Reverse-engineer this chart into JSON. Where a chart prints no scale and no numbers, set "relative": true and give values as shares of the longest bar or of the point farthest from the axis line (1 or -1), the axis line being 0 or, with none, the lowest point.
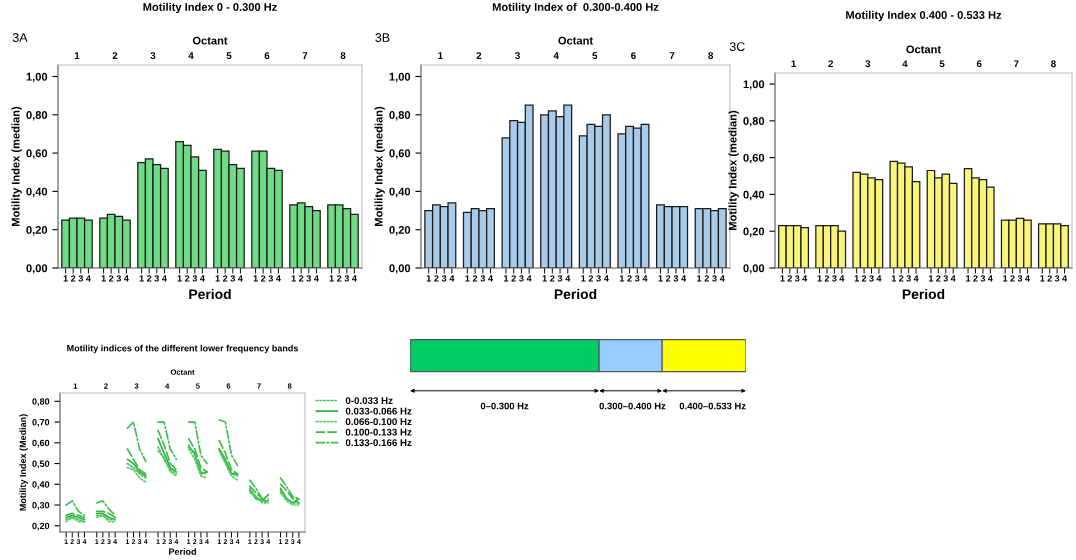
{
  "chart_data": [
    {
      "type": "bar",
      "title": "Motility Index 0 - 0.300 Hz",
      "annotations": [
        "3A"
      ],
      "xlabel": "Period",
      "x2label": "Octant",
      "ylabel": "Motility Index (median)",
      "categories": [
        "1",
        "2",
        "3",
        "4",
        null,
        "1",
        "2",
        "3",
        "4",
        null,
        "1",
        "2",
        "3",
        "4",
        null,
        "1",
        "2",
        "3",
        "4",
        null,
        "1",
        "2",
        "3",
        "4",
        null,
        "1",
        "2",
        "3",
        "4",
        null,
        "1",
        "2",
        "3",
        "4",
        null,
        "1",
        "2",
        "3",
        "4"
      ],
      "values": [
        0.25,
        0.26,
        0.26,
        0.25,
        null,
        0.26,
        0.28,
        0.27,
        0.25,
        null,
        0.55,
        0.57,
        0.54,
        0.52,
        null,
        0.66,
        0.64,
        0.58,
        0.51,
        null,
        0.62,
        0.61,
        0.54,
        0.52,
        null,
        0.61,
        0.61,
        0.52,
        0.51,
        null,
        0.33,
        0.34,
        0.32,
        0.3,
        null,
        0.33,
        0.33,
        0.31,
        0.28
      ],
      "color": "#6fdc85",
      "ylim": [
        0,
        1.06
      ],
      "yticks": [
        {
          "value": 0,
          "label": "0,00"
        },
        {
          "value": 0.2,
          "label": "0,20"
        },
        {
          "value": 0.4,
          "label": "0,40"
        },
        {
          "value": 0.6,
          "label": "0,60"
        },
        {
          "value": 0.8,
          "label": "0,80"
        },
        {
          "value": 1.0,
          "label": "1,00"
        }
      ],
      "x2lim": [
        0.5,
        8.5
      ],
      "x2ticks": [
        1,
        2,
        3,
        4,
        5,
        6,
        7,
        8
      ]
    },
    {
      "type": "bar",
      "title": "Motility Index of  0.300-0.400 Hz",
      "annotations": [
        "3B"
      ],
      "xlabel": "Period",
      "x2label": "Octant",
      "ylabel": "Motility Index (median)",
      "categories": [
        "1",
        "2",
        "3",
        "4",
        null,
        "1",
        "2",
        "3",
        "4",
        null,
        "1",
        "2",
        "3",
        "4",
        null,
        "1",
        "2",
        "3",
        "4",
        null,
        "1",
        "2",
        "3",
        "4",
        null,
        "1",
        "2",
        "3",
        "4",
        null,
        "1",
        "2",
        "3",
        "4",
        null,
        "1",
        "2",
        "3",
        "4"
      ],
      "values": [
        0.3,
        0.33,
        0.32,
        0.34,
        null,
        0.29,
        0.31,
        0.3,
        0.31,
        null,
        0.68,
        0.77,
        0.76,
        0.85,
        null,
        0.8,
        0.82,
        0.79,
        0.85,
        null,
        0.69,
        0.75,
        0.74,
        0.8,
        null,
        0.7,
        0.74,
        0.73,
        0.75,
        null,
        0.33,
        0.32,
        0.32,
        0.32,
        null,
        0.31,
        0.31,
        0.3,
        0.31
      ],
      "color": "#a9cbea",
      "ylim": [
        0,
        1.06
      ],
      "yticks": [
        {
          "value": 0,
          "label": "0,00"
        },
        {
          "value": 0.2,
          "label": "0,20"
        },
        {
          "value": 0.4,
          "label": "0,40"
        },
        {
          "value": 0.6,
          "label": "0,60"
        },
        {
          "value": 0.8,
          "label": "0,80"
        },
        {
          "value": 1.0,
          "label": "1,00"
        }
      ],
      "x2lim": [
        0.5,
        8.5
      ],
      "x2ticks": [
        1,
        2,
        3,
        4,
        5,
        6,
        7,
        8
      ]
    },
    {
      "type": "bar",
      "title": "Motility Index 0.400 - 0.533 Hz",
      "annotations": [
        "3C"
      ],
      "xlabel": "Period",
      "x2label": "Octant",
      "ylabel": "Motility Index (median)",
      "categories": [
        "1",
        "2",
        "3",
        "4",
        null,
        "1",
        "2",
        "3",
        "4",
        null,
        "1",
        "2",
        "3",
        "4",
        null,
        "1",
        "2",
        "3",
        "4",
        null,
        "1",
        "2",
        "3",
        "4",
        null,
        "1",
        "2",
        "3",
        "4",
        null,
        "1",
        "2",
        "3",
        "4",
        null,
        "1",
        "2",
        "3",
        "4"
      ],
      "values": [
        0.23,
        0.23,
        0.23,
        0.22,
        null,
        0.23,
        0.23,
        0.23,
        0.2,
        null,
        0.52,
        0.51,
        0.49,
        0.48,
        null,
        0.58,
        0.57,
        0.55,
        0.47,
        null,
        0.53,
        0.49,
        0.51,
        0.46,
        null,
        0.54,
        0.49,
        0.48,
        0.44,
        null,
        0.26,
        0.26,
        0.27,
        0.26,
        null,
        0.24,
        0.24,
        0.24,
        0.23
      ],
      "color": "#f9f57a",
      "ylim": [
        0,
        1.06
      ],
      "yticks": [
        {
          "value": 0,
          "label": "0,00"
        },
        {
          "value": 0.2,
          "label": "0,20"
        },
        {
          "value": 0.4,
          "label": "0,40"
        },
        {
          "value": 0.6,
          "label": "0,60"
        },
        {
          "value": 0.8,
          "label": "0,80"
        },
        {
          "value": 1.0,
          "label": "1,00"
        }
      ],
      "x2lim": [
        0.5,
        8.5
      ],
      "x2ticks": [
        1,
        2,
        3,
        4,
        5,
        6,
        7,
        8
      ]
    },
    {
      "type": "line",
      "title": "Motility indices of the different lower frequency bands",
      "xlabel": "Period",
      "x2label": "Octant",
      "ylabel": "Motility Index (Median)",
      "legend": "right",
      "categories": [
        "1",
        "2",
        "3",
        "4",
        null,
        "1",
        "2",
        "3",
        "4",
        null,
        "1",
        "2",
        "3",
        "4",
        null,
        "1",
        "2",
        "3",
        "4",
        null,
        "1",
        "2",
        "3",
        "4",
        null,
        "1",
        "2",
        "3",
        "4",
        null,
        "1",
        "2",
        "3",
        "4",
        null,
        "1",
        "2",
        "3",
        "4"
      ],
      "ylim": [
        0.17,
        0.84
      ],
      "yticks": [
        {
          "value": 0.2,
          "label": "0,20"
        },
        {
          "value": 0.3,
          "label": "0,30"
        },
        {
          "value": 0.4,
          "label": "0,40"
        },
        {
          "value": 0.5,
          "label": "0,50"
        },
        {
          "value": 0.6,
          "label": "0,60"
        },
        {
          "value": 0.7,
          "label": "0,70"
        },
        {
          "value": 0.8,
          "label": "0,80"
        }
      ],
      "x2lim": [
        0.5,
        8.5
      ],
      "x2ticks": [
        1,
        2,
        3,
        4,
        5,
        6,
        7,
        8
      ],
      "series": [
        {
          "name": "0-0.033 Hz",
          "color": "#45c455",
          "line_style": "dotted",
          "values": [
            0.23,
            0.24,
            0.23,
            0.22,
            null,
            0.25,
            0.25,
            0.23,
            0.23,
            null,
            0.5,
            0.48,
            0.45,
            0.43,
            null,
            0.58,
            0.52,
            0.47,
            0.45,
            null,
            0.59,
            0.54,
            0.46,
            0.45,
            null,
            0.57,
            0.51,
            0.45,
            0.44,
            null,
            0.38,
            0.34,
            0.32,
            0.32,
            null,
            0.37,
            0.33,
            0.31,
            0.31
          ]
        },
        {
          "name": "0.033-0.066 Hz",
          "color": "#2fb040",
          "line_style": "solid",
          "values": [
            0.24,
            0.25,
            0.24,
            0.23,
            null,
            0.26,
            0.26,
            0.24,
            0.23,
            null,
            0.52,
            0.5,
            0.46,
            0.44,
            null,
            0.62,
            0.55,
            0.48,
            0.46,
            null,
            0.58,
            0.55,
            0.45,
            0.46,
            null,
            0.57,
            0.52,
            0.45,
            0.45,
            null,
            0.37,
            0.33,
            0.32,
            0.35,
            null,
            0.38,
            0.33,
            0.31,
            0.33
          ]
        },
        {
          "name": "0.066-0.100 Hz",
          "color": "#5ccc68",
          "line_style": "dotted",
          "values": [
            0.22,
            0.24,
            0.22,
            0.22,
            null,
            0.24,
            0.25,
            0.22,
            0.22,
            null,
            0.48,
            0.47,
            0.43,
            0.41,
            null,
            0.56,
            0.53,
            0.46,
            0.44,
            null,
            0.57,
            0.52,
            0.44,
            0.43,
            null,
            0.56,
            0.5,
            0.44,
            0.42,
            null,
            0.36,
            0.34,
            0.31,
            0.31,
            null,
            0.36,
            0.32,
            0.3,
            0.3
          ]
        },
        {
          "name": "0.100-0.133 Hz",
          "color": "#38ba48",
          "line_style": "dashed",
          "values": [
            0.25,
            0.26,
            0.25,
            0.24,
            null,
            0.27,
            0.27,
            0.26,
            0.24,
            null,
            0.57,
            0.52,
            0.47,
            0.45,
            null,
            0.66,
            0.59,
            0.5,
            0.47,
            null,
            0.62,
            0.57,
            0.48,
            0.46,
            null,
            0.61,
            0.55,
            0.47,
            0.45,
            null,
            0.39,
            0.36,
            0.33,
            0.33,
            null,
            0.4,
            0.37,
            0.33,
            0.31
          ]
        },
        {
          "name": "0.133-0.166 Hz",
          "color": "#3cbf4c",
          "line_style": "dashdot",
          "values": [
            0.3,
            0.32,
            0.27,
            0.25,
            null,
            0.31,
            0.32,
            0.28,
            0.25,
            null,
            0.67,
            0.7,
            0.57,
            0.51,
            null,
            0.7,
            0.7,
            0.57,
            0.52,
            null,
            0.7,
            0.7,
            0.54,
            0.5,
            null,
            0.71,
            0.7,
            0.54,
            0.49,
            null,
            0.42,
            0.38,
            0.33,
            0.31,
            null,
            0.43,
            0.39,
            0.34,
            0.33
          ]
        }
      ]
    },
    {
      "type": "bar",
      "orientation": "horizontal",
      "stacked": true,
      "relative": true,
      "categories": [
        null
      ],
      "annotations": [
        "0–0.300 Hz",
        "0.300–0.400 Hz",
        "0.400–0.533 Hz"
      ],
      "series": [
        {
          "color": "#00cc66",
          "values": [
            0.5629
          ]
        },
        {
          "color": "#99ccff",
          "values": [
            0.1876
          ]
        },
        {
          "color": "#ffff00",
          "values": [
            0.2495
          ]
        }
      ]
    }
  ]
}
